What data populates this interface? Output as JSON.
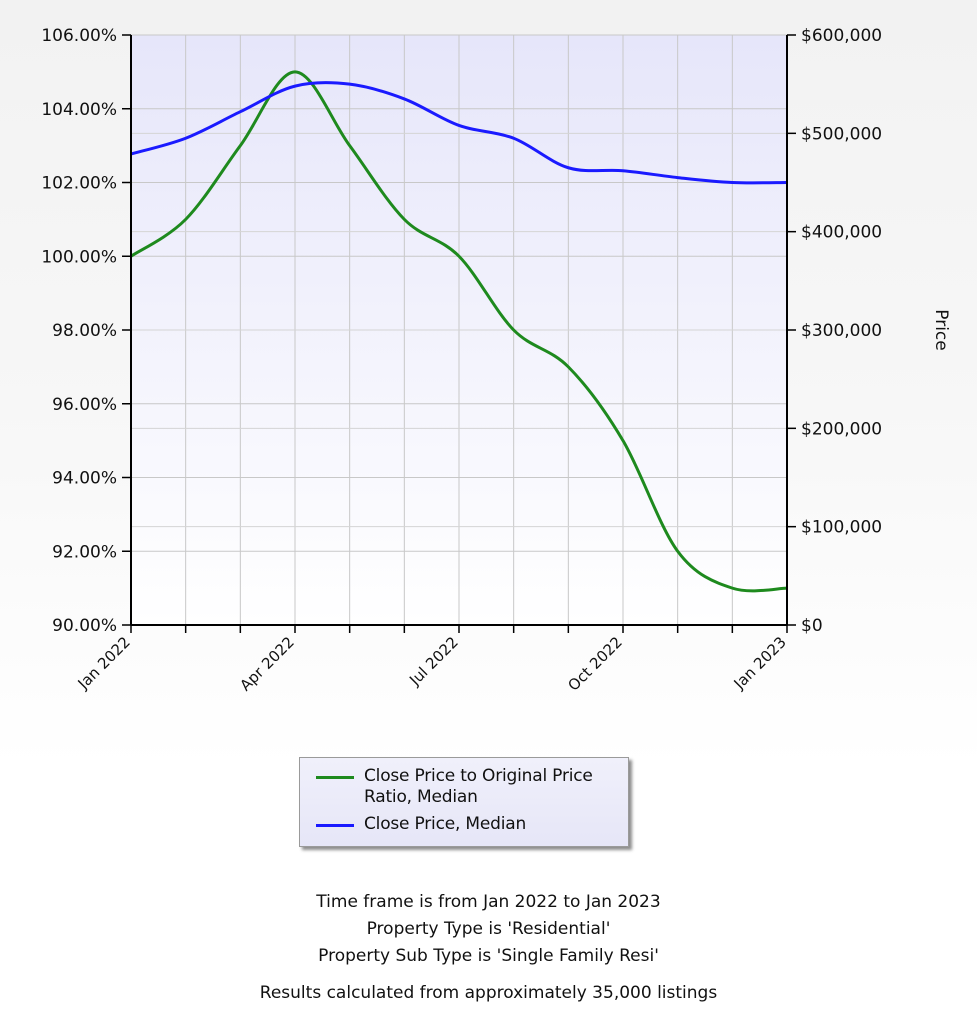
{
  "chart_data": {
    "type": "line",
    "x": [
      "2022-01",
      "2022-02",
      "2022-03",
      "2022-04",
      "2022-05",
      "2022-06",
      "2022-07",
      "2022-08",
      "2022-09",
      "2022-10",
      "2022-11",
      "2022-12",
      "2023-01"
    ],
    "x_tick_labels": [
      {
        "x": "2022-01",
        "label": "Jan 2022"
      },
      {
        "x": "2022-04",
        "label": "Apr 2022"
      },
      {
        "x": "2022-07",
        "label": "Jul 2022"
      },
      {
        "x": "2022-10",
        "label": "Oct 2022"
      },
      {
        "x": "2023-01",
        "label": "Jan 2023"
      }
    ],
    "series": [
      {
        "name": "Close Price to Original Price Ratio, Median",
        "axis": "left",
        "color": "#1e8a1e",
        "values": [
          100.0,
          101.0,
          103.0,
          105.0,
          103.0,
          101.0,
          100.0,
          98.0,
          97.0,
          95.0,
          92.0,
          91.0,
          91.0
        ]
      },
      {
        "name": "Close Price, Median",
        "axis": "right",
        "color": "#1a1aff",
        "values": [
          479000,
          495000,
          522000,
          548000,
          550000,
          535000,
          508000,
          495000,
          465000,
          462000,
          455000,
          450000,
          450000
        ]
      }
    ],
    "y_left": {
      "range": [
        90,
        106
      ],
      "tick_labels": [
        "90.00%",
        "92.00%",
        "94.00%",
        "96.00%",
        "98.00%",
        "100.00%",
        "102.00%",
        "104.00%",
        "106.00%"
      ],
      "label": ""
    },
    "y_right": {
      "range": [
        0,
        600000
      ],
      "tick_labels": [
        "$0",
        "$100,000",
        "$200,000",
        "$300,000",
        "$400,000",
        "$500,000",
        "$600,000"
      ],
      "label": "Price"
    },
    "grid": true,
    "legend_position": "bottom-center",
    "plot_background": "#e6e6fa"
  },
  "legend": {
    "items": [
      {
        "label": "Close Price to Original Price Ratio, Median",
        "color": "#1e8a1e"
      },
      {
        "label": "Close Price, Median",
        "color": "#1a1aff"
      }
    ]
  },
  "footer": {
    "line1": "Time frame is from Jan 2022 to Jan 2023",
    "line2": "Property Type is 'Residential'",
    "line3": "Property Sub Type is 'Single Family Resi'",
    "line4": "Results calculated from approximately 35,000 listings"
  }
}
